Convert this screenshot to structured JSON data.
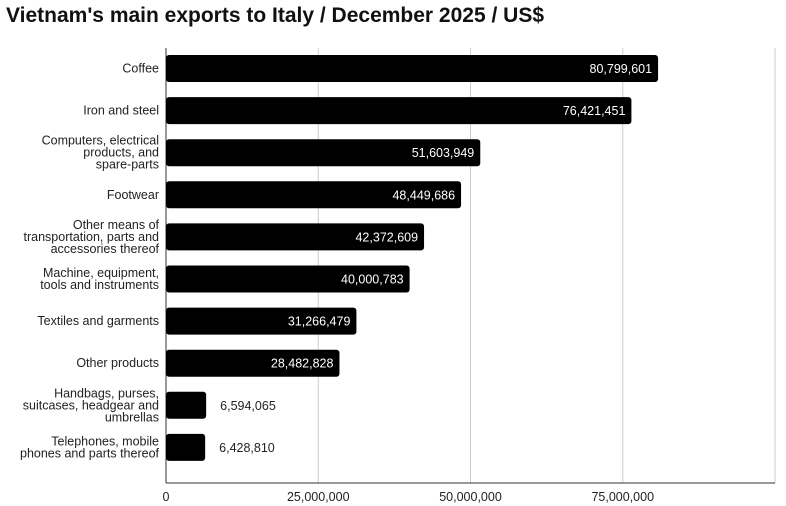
{
  "chart_data": {
    "type": "bar",
    "orientation": "horizontal",
    "title": "Vietnam's main exports to Italy / December 2025 / US$",
    "categories": [
      "Coffee",
      "Iron and steel",
      "Computers, electrical products, and spare-parts",
      "Footwear",
      "Other means of transportation, parts and accessories thereof",
      "Machine, equipment, tools and instruments",
      "Textiles and garments",
      "Other products",
      "Handbags, purses, suitcases, headgear and umbrellas",
      "Telephones, mobile phones and parts thereof"
    ],
    "category_lines": [
      [
        "Coffee"
      ],
      [
        "Iron and steel"
      ],
      [
        "Computers, electrical",
        "products, and",
        "spare-parts"
      ],
      [
        "Footwear"
      ],
      [
        "Other means of",
        "transportation, parts and",
        "accessories thereof"
      ],
      [
        "Machine, equipment,",
        "tools and instruments"
      ],
      [
        "Textiles and garments"
      ],
      [
        "Other products"
      ],
      [
        "Handbags, purses,",
        "suitcases, headgear and",
        "umbrellas"
      ],
      [
        "Telephones, mobile",
        "phones and parts thereof"
      ]
    ],
    "values": [
      80799601,
      76421451,
      51603949,
      48449686,
      42372609,
      40000783,
      31266479,
      28482828,
      6594065,
      6428810
    ],
    "value_labels": [
      "80,799,601",
      "76,421,451",
      "51,603,949",
      "48,449,686",
      "42,372,609",
      "40,000,783",
      "31,266,479",
      "28,482,828",
      "6,594,065",
      "6,428,810"
    ],
    "xlabel": "",
    "ylabel": "",
    "xlim": [
      0,
      100000000
    ],
    "xticks": [
      0,
      25000000,
      50000000,
      75000000
    ],
    "xtick_labels": [
      "0",
      "25,000,000",
      "50,000,000",
      "75,000,000"
    ],
    "grid": true,
    "legend": "none",
    "colors": {
      "bar": "#000000",
      "grid": "#cccccc",
      "text": "#222222",
      "label_inside": "#ffffff"
    }
  }
}
